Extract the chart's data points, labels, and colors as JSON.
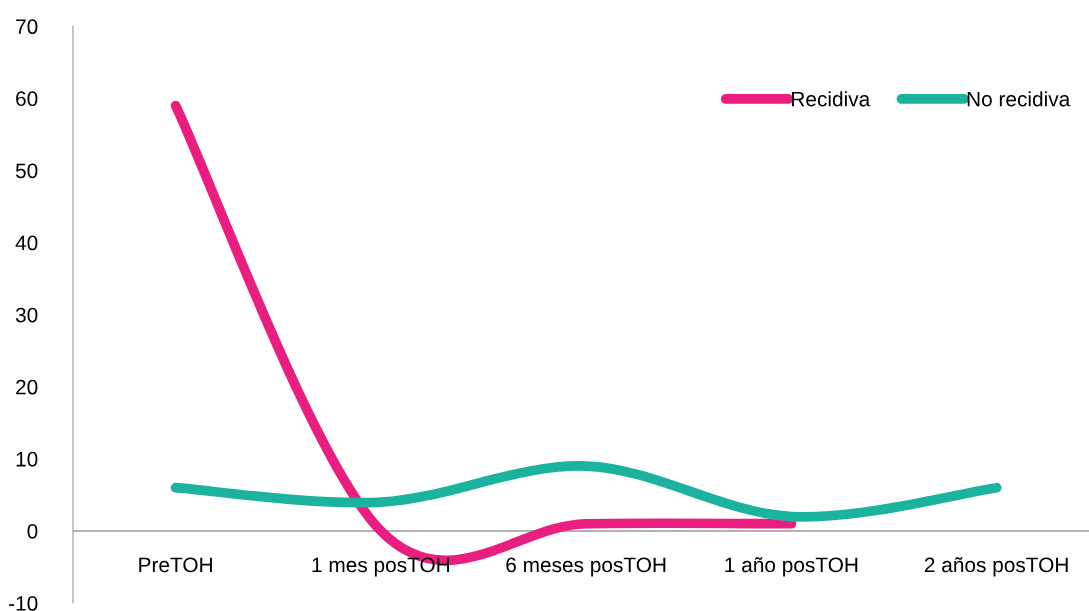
{
  "chart_data": {
    "type": "line",
    "categories": [
      "PreTOH",
      "1 mes posTOH",
      "6 meses posTOH",
      "1 año posTOH",
      "2 años posTOH"
    ],
    "series": [
      {
        "name": "Recidiva",
        "color": "#e91e7f",
        "values": [
          59,
          0,
          1,
          1,
          null
        ]
      },
      {
        "name": "No recidiva",
        "color": "#1cb39e",
        "values": [
          6,
          4,
          9,
          2,
          6
        ]
      }
    ],
    "ylim": [
      -10,
      70
    ],
    "yticks": [
      -10,
      0,
      10,
      20,
      30,
      40,
      50,
      60,
      70
    ],
    "grid": false,
    "legend": "top right",
    "marker": "none",
    "line_style": "solid"
  }
}
